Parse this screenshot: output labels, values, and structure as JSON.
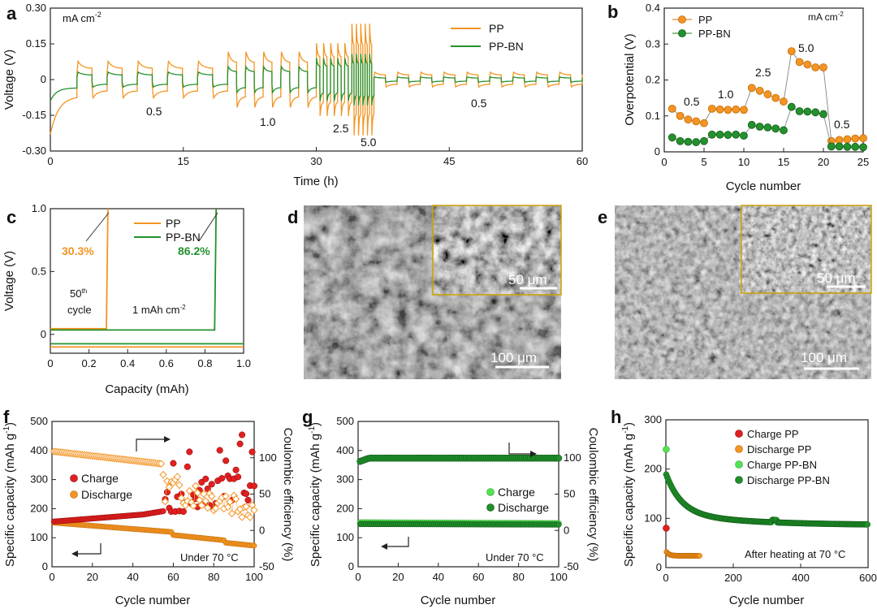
{
  "colors": {
    "pp": "#f39423",
    "ppbn": "#23912d",
    "pp_dark": "#d46e00",
    "ppbn_dark": "#1d7a25",
    "charge_pp": "#e02020",
    "discharge_pp": "#f39423",
    "charge_ppbn": "#55e055",
    "discharge_ppbn": "#1f8f2a",
    "inset_border": "#c9a200"
  },
  "panels": {
    "a": "a",
    "b": "b",
    "c": "c",
    "d": "d",
    "e": "e",
    "f": "f",
    "g": "g",
    "h": "h"
  },
  "chart_data": [
    {
      "panel": "a",
      "type": "line",
      "xlabel": "Time (h)",
      "ylabel": "Voltage (V)",
      "unit_label": "mA cm",
      "xlim": [
        0,
        60
      ],
      "ylim": [
        -0.3,
        0.3
      ],
      "xticks": [
        "0",
        "15",
        "30",
        "45",
        "60"
      ],
      "xtick_values": [
        0,
        15,
        30,
        45,
        60
      ],
      "yticks": [
        "0.30",
        "0.15",
        "0",
        "-0.15",
        "-0.30"
      ],
      "ytick_values": [
        0.3,
        0.15,
        0,
        -0.15,
        -0.3
      ],
      "legend": [
        "PP",
        "PP-BN"
      ],
      "annotations": [
        "0.5",
        "1.0",
        "2.5",
        "5.0",
        "0.5"
      ],
      "segments": [
        {
          "rate": "0.5",
          "t_start": 3,
          "t_end": 20,
          "cycles": 5,
          "pp_amp": 0.085,
          "ppbn_amp": 0.035
        },
        {
          "rate": "1.0",
          "t_start": 20,
          "t_end": 30,
          "cycles": 5,
          "pp_amp": 0.13,
          "ppbn_amp": 0.06
        },
        {
          "rate": "2.5",
          "t_start": 30,
          "t_end": 34,
          "cycles": 5,
          "pp_amp": 0.17,
          "ppbn_amp": 0.1
        },
        {
          "rate": "5.0",
          "t_start": 34,
          "t_end": 36.5,
          "cycles": 5,
          "pp_amp": 0.26,
          "ppbn_amp": 0.12
        },
        {
          "rate": "0.5",
          "t_start": 36.5,
          "t_end": 60,
          "cycles": 9,
          "pp_amp": 0.035,
          "ppbn_amp": 0.012
        }
      ]
    },
    {
      "panel": "b",
      "type": "scatter",
      "xlabel": "Cycle number",
      "ylabel": "Overpotential (V)",
      "unit_label": "mA cm",
      "xlim": [
        0,
        25
      ],
      "ylim": [
        0,
        0.4
      ],
      "xticks": [
        "0",
        "5",
        "10",
        "15",
        "20",
        "25"
      ],
      "xtick_values": [
        0,
        5,
        10,
        15,
        20,
        25
      ],
      "yticks": [
        "0.4",
        "0.3",
        "0.2",
        "0.1",
        "0"
      ],
      "ytick_values": [
        0.4,
        0.3,
        0.2,
        0.1,
        0
      ],
      "legend": [
        "PP",
        "PP-BN"
      ],
      "annotations": [
        "0.5",
        "1.0",
        "2.5",
        "5.0",
        "0.5"
      ],
      "series": [
        {
          "name": "PP",
          "x": [
            1,
            2,
            3,
            4,
            5,
            6,
            7,
            8,
            9,
            10,
            11,
            12,
            13,
            14,
            15,
            16,
            17,
            18,
            19,
            20,
            21,
            22,
            23,
            24,
            25
          ],
          "y": [
            0.12,
            0.1,
            0.09,
            0.085,
            0.08,
            0.12,
            0.118,
            0.117,
            0.118,
            0.117,
            0.178,
            0.17,
            0.16,
            0.15,
            0.14,
            0.28,
            0.25,
            0.243,
            0.235,
            0.235,
            0.03,
            0.033,
            0.035,
            0.037,
            0.038
          ]
        },
        {
          "name": "PP-BN",
          "x": [
            1,
            2,
            3,
            4,
            5,
            6,
            7,
            8,
            9,
            10,
            11,
            12,
            13,
            14,
            15,
            16,
            17,
            18,
            19,
            20,
            21,
            22,
            23,
            24,
            25
          ],
          "y": [
            0.04,
            0.03,
            0.028,
            0.027,
            0.03,
            0.048,
            0.048,
            0.047,
            0.048,
            0.045,
            0.075,
            0.07,
            0.068,
            0.065,
            0.06,
            0.125,
            0.113,
            0.112,
            0.11,
            0.105,
            0.015,
            0.015,
            0.014,
            0.014,
            0.013
          ]
        }
      ]
    },
    {
      "panel": "c",
      "type": "line",
      "xlabel": "Capacity (mAh)",
      "ylabel": "Voltage (V)",
      "xlim": [
        0,
        1.0
      ],
      "ylim": [
        -0.15,
        1.0
      ],
      "xticks": [
        "0",
        "0.2",
        "0.4",
        "0.6",
        "0.8",
        "1.0"
      ],
      "xtick_values": [
        0,
        0.2,
        0.4,
        0.6,
        0.8,
        1.0
      ],
      "yticks": [
        "1.0",
        "0.5",
        "0"
      ],
      "ytick_values": [
        1.0,
        0.5,
        0
      ],
      "legend": [
        "PP",
        "PP-BN"
      ],
      "annotations": {
        "pp_pct": "30.3%",
        "ppbn_pct": "86.2%",
        "cycle_num": "50",
        "cycle_sup": "th",
        "cycle_word": "cycle",
        "capacity": "1 mAh cm"
      },
      "series": [
        {
          "name": "PP",
          "charge_end": 0.29,
          "charge_v": 0.045,
          "discharge_v": -0.1
        },
        {
          "name": "PP-BN",
          "charge_end": 0.85,
          "charge_v": 0.035,
          "discharge_v": -0.075
        }
      ]
    },
    {
      "panel": "f",
      "type": "scatter",
      "xlabel": "Cycle number",
      "ylabel": "Specific capacity (mAh g",
      "ylabel_end": ")",
      "ylabel2": "Coulombic efficiency (%)",
      "note": "Under 70 °C",
      "xlim": [
        0,
        100
      ],
      "ylim": [
        0,
        500
      ],
      "y2lim": [
        -50,
        150
      ],
      "xticks": [
        "0",
        "20",
        "40",
        "60",
        "80",
        "100"
      ],
      "xtick_values": [
        0,
        20,
        40,
        60,
        80,
        100
      ],
      "yticks": [
        "500",
        "400",
        "300",
        "200",
        "100",
        "0"
      ],
      "ytick_values": [
        500,
        400,
        300,
        200,
        100,
        0
      ],
      "y2ticks": [
        "100",
        "50",
        "0",
        "-50"
      ],
      "y2tick_values": [
        100,
        50,
        0,
        -50
      ],
      "legend": [
        "Charge",
        "Discharge"
      ]
    },
    {
      "panel": "g",
      "type": "scatter",
      "xlabel": "Cycle number",
      "ylabel": "Specific capacity (mAh g",
      "ylabel_end": ")",
      "ylabel2": "Coulombic efficiency (%)",
      "note": "Under 70 °C",
      "xlim": [
        0,
        100
      ],
      "ylim": [
        0,
        500
      ],
      "y2lim": [
        -50,
        150
      ],
      "xticks": [
        "0",
        "20",
        "40",
        "60",
        "80",
        "100"
      ],
      "xtick_values": [
        0,
        20,
        40,
        60,
        80,
        100
      ],
      "yticks": [
        "500",
        "400",
        "300",
        "200",
        "100",
        "0"
      ],
      "ytick_values": [
        500,
        400,
        300,
        200,
        100,
        0
      ],
      "y2ticks": [
        "100",
        "50",
        "0",
        "-50"
      ],
      "y2tick_values": [
        100,
        50,
        0,
        -50
      ],
      "legend": [
        "Charge",
        "Discharge"
      ]
    },
    {
      "panel": "h",
      "type": "scatter",
      "xlabel": "Cycle number",
      "ylabel": "Specific capacity (mAh g",
      "ylabel_end": ")",
      "note": "After heating at 70 °C",
      "xlim": [
        0,
        600
      ],
      "ylim": [
        0,
        300
      ],
      "xticks": [
        "0",
        "200",
        "400",
        "600"
      ],
      "xtick_values": [
        0,
        200,
        400,
        600
      ],
      "yticks": [
        "300",
        "200",
        "100",
        "0"
      ],
      "ytick_values": [
        300,
        200,
        100,
        0
      ],
      "legend": [
        "Charge PP",
        "Discharge PP",
        "Charge PP-BN",
        "Discharge PP-BN"
      ]
    }
  ],
  "images": [
    {
      "panel": "d",
      "scale_main": "100 μm",
      "scale_inset": "50 μm"
    },
    {
      "panel": "e",
      "scale_main": "100 μm",
      "scale_inset": "50 μm"
    }
  ],
  "superscripts": {
    "minus2": "-2",
    "minus1": "-1"
  }
}
